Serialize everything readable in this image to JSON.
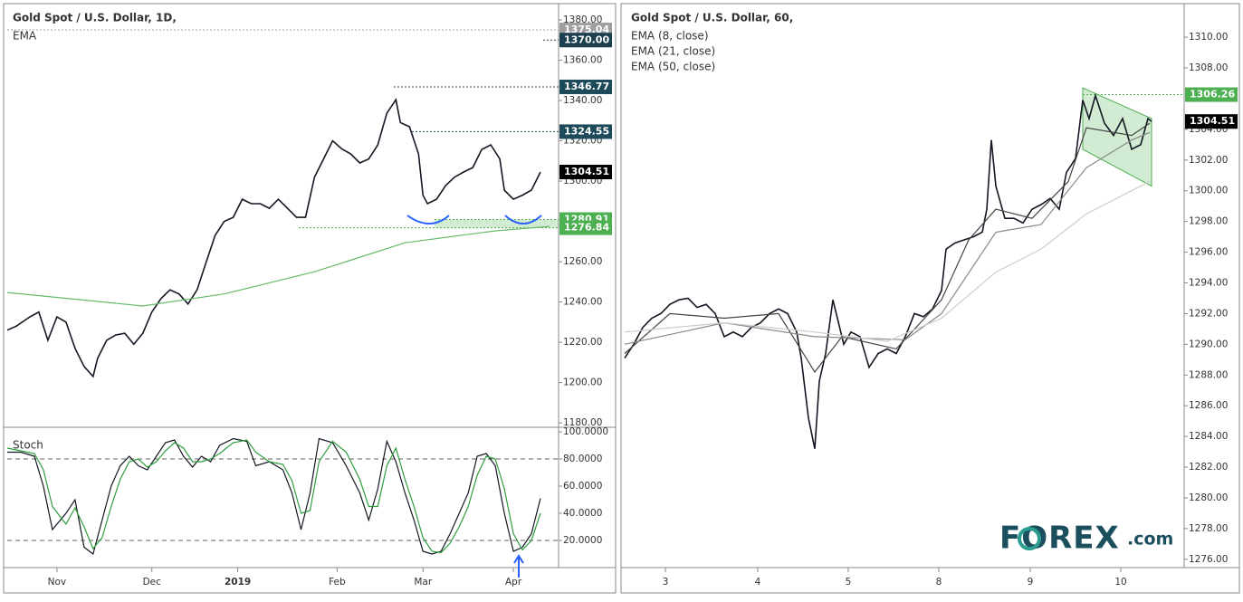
{
  "chart_data": [
    {
      "type": "line",
      "title": "Gold Spot / U.S. Dollar, 1D,",
      "xlim": [
        0,
        122
      ],
      "ylim": [
        1178.7,
        1386.3
      ],
      "yticks": [
        {
          "value": 1180,
          "label": "1180.00"
        },
        {
          "value": 1200,
          "label": "1200.00"
        },
        {
          "value": 1220,
          "label": "1220.00"
        },
        {
          "value": 1240,
          "label": "1240.00"
        },
        {
          "value": 1260,
          "label": "1260.00"
        },
        {
          "value": 1300,
          "label": "1300.00"
        },
        {
          "value": 1320,
          "label": "1320.00"
        },
        {
          "value": 1340,
          "label": "1340.00"
        },
        {
          "value": 1360,
          "label": "1360.00"
        },
        {
          "value": 1380,
          "label": "1380.00"
        }
      ],
      "series": [
        {
          "color": "#131722",
          "x": [
            0,
            2,
            5,
            7,
            9,
            11,
            13,
            15,
            17,
            19,
            20,
            22,
            24,
            26,
            28,
            30,
            32,
            34,
            36,
            38,
            40,
            42,
            44,
            46,
            48,
            50,
            52,
            54,
            56,
            58,
            60,
            62,
            64,
            66,
            68,
            70,
            72,
            74,
            76,
            78,
            80,
            82,
            84,
            86,
            87,
            89,
            91,
            92,
            93,
            95,
            97,
            99,
            101,
            103,
            105,
            107,
            109,
            110,
            112,
            114,
            116,
            118
          ],
          "values": [
            1226,
            1228,
            1232.6,
            1235,
            1221,
            1232.6,
            1230,
            1217,
            1208,
            1203,
            1212,
            1221,
            1223.6,
            1224.5,
            1219,
            1224.5,
            1235,
            1241.6,
            1246,
            1244,
            1239,
            1246,
            1259.6,
            1273,
            1280,
            1282,
            1291,
            1288.8,
            1288.8,
            1286.5,
            1291,
            1286.5,
            1282,
            1282,
            1302,
            1311,
            1320,
            1316,
            1313.5,
            1309,
            1311,
            1318,
            1333.7,
            1340.4,
            1329,
            1327,
            1313.5,
            1293,
            1288.8,
            1291,
            1297.8,
            1302,
            1304.5,
            1306.7,
            1315.7,
            1318,
            1311,
            1295.5,
            1291,
            1293,
            1295.5,
            1304.51
          ]
        },
        {
          "name": "EMA",
          "color": "#66bb6a",
          "x": [
            0,
            30,
            48,
            68,
            88,
            108,
            120
          ],
          "values": [
            1244.7,
            1238,
            1244,
            1255,
            1269.4,
            1275.3,
            1277.5
          ]
        }
      ],
      "price_labels": [
        {
          "value": 1375.04,
          "label": "1375.04",
          "color": "#9e9e9e"
        },
        {
          "value": 1370,
          "label": "1370.00",
          "color": "#1c3f4f"
        },
        {
          "value": 1346.77,
          "label": "1346.77",
          "color": "#1c4a5a"
        },
        {
          "value": 1324.55,
          "label": "1324.55",
          "color": "#1c4a5a"
        },
        {
          "value": 1304.51,
          "label": "1304.51",
          "color": "#000000"
        },
        {
          "value": 1280.91,
          "label": "1280.91",
          "color": "#4caf50"
        },
        {
          "value": 1276.84,
          "label": "1276.84",
          "color": "#4caf50"
        }
      ]
    },
    {
      "type": "line",
      "title": "Stoch",
      "xlim": [
        0,
        122
      ],
      "ylim": [
        0,
        102
      ],
      "yticks": [
        {
          "value": 20,
          "label": "20.0000"
        },
        {
          "value": 40,
          "label": "40.0000"
        },
        {
          "value": 60,
          "label": "60.0000"
        },
        {
          "value": 80,
          "label": "80.0000"
        },
        {
          "value": 100,
          "label": "100.0000"
        }
      ],
      "dashed_levels": [
        20,
        80
      ],
      "xticks": [
        {
          "value": 11,
          "label": "Nov"
        },
        {
          "value": 32,
          "label": "Dec"
        },
        {
          "value": 51,
          "label": "2019"
        },
        {
          "value": 73,
          "label": "Feb"
        },
        {
          "value": 92,
          "label": "Mar"
        },
        {
          "value": 112,
          "label": "Apr"
        }
      ],
      "series": [
        {
          "color": "#131722",
          "x": [
            0,
            3,
            6,
            8,
            10,
            13,
            15,
            17,
            19,
            21,
            23,
            25,
            27,
            29,
            31,
            33,
            35,
            37,
            39,
            41,
            43,
            45,
            47,
            50,
            53,
            55,
            58,
            61,
            63,
            65,
            67,
            69,
            72,
            75,
            78,
            80,
            82,
            84,
            86,
            88,
            90,
            92,
            94,
            96,
            98,
            100,
            102,
            104,
            106,
            108,
            110,
            112,
            114,
            116,
            118
          ],
          "values": [
            85,
            85,
            82,
            60,
            28,
            40,
            50,
            15,
            10,
            35,
            60,
            75,
            82,
            75,
            72,
            82,
            92,
            94,
            82,
            74,
            82,
            78,
            90,
            95,
            93,
            75,
            78,
            72,
            55,
            28,
            55,
            95,
            92,
            75,
            55,
            35,
            58,
            93,
            78,
            55,
            35,
            12,
            10,
            12,
            25,
            40,
            55,
            82,
            84,
            75,
            40,
            12,
            15,
            25,
            51
          ]
        },
        {
          "color": "#2e9e3f",
          "x": [
            0,
            3,
            6,
            8,
            10,
            13,
            15,
            17,
            19,
            21,
            23,
            25,
            27,
            29,
            31,
            33,
            35,
            37,
            39,
            41,
            43,
            45,
            47,
            50,
            53,
            55,
            58,
            61,
            63,
            65,
            67,
            69,
            72,
            75,
            78,
            80,
            82,
            84,
            86,
            88,
            90,
            92,
            94,
            96,
            98,
            100,
            102,
            104,
            106,
            108,
            110,
            112,
            114,
            116,
            118
          ],
          "values": [
            88,
            86,
            84,
            72,
            45,
            32,
            44,
            30,
            14,
            22,
            45,
            65,
            78,
            80,
            74,
            78,
            86,
            92,
            88,
            78,
            78,
            80,
            84,
            92,
            94,
            85,
            78,
            76,
            64,
            40,
            42,
            78,
            93,
            85,
            65,
            45,
            45,
            75,
            88,
            65,
            45,
            22,
            12,
            11,
            18,
            30,
            45,
            68,
            82,
            80,
            58,
            25,
            13,
            20,
            40
          ]
        }
      ]
    },
    {
      "type": "line",
      "title": "Gold Spot / U.S. Dollar, 60,",
      "xlim": [
        0,
        124
      ],
      "ylim": [
        1275.46,
        1311.95
      ],
      "yticks": [
        {
          "value": 1276,
          "label": "1276.00"
        },
        {
          "value": 1278,
          "label": "1278.00"
        },
        {
          "value": 1280,
          "label": "1280.00"
        },
        {
          "value": 1282,
          "label": "1282.00"
        },
        {
          "value": 1284,
          "label": "1284.00"
        },
        {
          "value": 1286,
          "label": "1286.00"
        },
        {
          "value": 1288,
          "label": "1288.00"
        },
        {
          "value": 1290,
          "label": "1290.00"
        },
        {
          "value": 1292,
          "label": "1292.00"
        },
        {
          "value": 1294,
          "label": "1294.00"
        },
        {
          "value": 1296,
          "label": "1296.00"
        },
        {
          "value": 1298,
          "label": "1298.00"
        },
        {
          "value": 1300,
          "label": "1300.00"
        },
        {
          "value": 1302,
          "label": "1302.00"
        },
        {
          "value": 1304,
          "label": "1304.00"
        },
        {
          "value": 1308,
          "label": "1308.00"
        },
        {
          "value": 1310,
          "label": "1310.00"
        }
      ],
      "xticks": [
        {
          "value": 9.4,
          "label": "3"
        },
        {
          "value": 29.8,
          "label": "4"
        },
        {
          "value": 49.8,
          "label": "5"
        },
        {
          "value": 69.8,
          "label": "8"
        },
        {
          "value": 90,
          "label": "9"
        },
        {
          "value": 110,
          "label": "10"
        }
      ],
      "series": [
        {
          "color": "#131722",
          "x": [
            0.4,
            2.4,
            4.4,
            6.4,
            8.4,
            10.4,
            12.4,
            14.4,
            16.4,
            18.4,
            20.4,
            22.4,
            24.4,
            26.4,
            28.4,
            30.4,
            32.4,
            34.4,
            36.4,
            38.4,
            39.4,
            41,
            42.4,
            43.4,
            44.8,
            46.4,
            47.4,
            48.8,
            50.4,
            52.4,
            54.4,
            56.4,
            58.4,
            60.4,
            62.4,
            64.4,
            66.4,
            68.4,
            70.4,
            71.4,
            73.4,
            75.4,
            77.4,
            79.4,
            80.4,
            81.4,
            82.4,
            84.4,
            86.4,
            88.4,
            90.4,
            92.4,
            94.4,
            96.4,
            98,
            100,
            101.6,
            103,
            104.4,
            106.4,
            108.4,
            110.4,
            112.4,
            114.4,
            116,
            116.8
          ],
          "values": [
            1289.1,
            1290,
            1291.1,
            1291.7,
            1292,
            1292.6,
            1292.9,
            1293,
            1292.4,
            1292.6,
            1292,
            1290.5,
            1290.8,
            1290.5,
            1291.1,
            1291.4,
            1292,
            1292.3,
            1292,
            1290.8,
            1289.1,
            1285.2,
            1283.2,
            1287.6,
            1289.4,
            1292.9,
            1291.7,
            1290,
            1290.8,
            1290.5,
            1288.5,
            1289.4,
            1289.7,
            1289.4,
            1290.5,
            1292,
            1291.8,
            1292.3,
            1293.5,
            1296.2,
            1296.6,
            1296.8,
            1297,
            1297.3,
            1298.8,
            1303.3,
            1300.3,
            1298.2,
            1298.2,
            1297.9,
            1298.8,
            1299.1,
            1299.5,
            1298.8,
            1301.2,
            1302.1,
            1305.9,
            1304.7,
            1306.2,
            1304.4,
            1303.6,
            1304.7,
            1302.7,
            1303,
            1304.7,
            1304.51
          ]
        },
        {
          "name": "EMA (8, close)",
          "color": "#444444",
          "x": [
            0.4,
            10.4,
            22.4,
            34.4,
            42.4,
            48.4,
            60.4,
            70.4,
            76.4,
            82.4,
            90.4,
            98.4,
            102.4,
            112.4,
            116.4
          ],
          "values": [
            1289.4,
            1292,
            1291.7,
            1292,
            1288.2,
            1290.5,
            1289.7,
            1292.9,
            1296.8,
            1298.8,
            1298.2,
            1300.6,
            1304.1,
            1303.6,
            1304.4
          ]
        },
        {
          "name": "EMA (21, close)",
          "color": "#888888",
          "x": [
            0.4,
            22.4,
            42.4,
            62.4,
            70.4,
            82.4,
            92.4,
            102.4,
            112.4,
            116.4
          ],
          "values": [
            1290,
            1291.4,
            1290.5,
            1290.3,
            1292,
            1297.3,
            1297.8,
            1301.5,
            1303.3,
            1303.8
          ]
        },
        {
          "name": "EMA (50, close)",
          "color": "#cccccc",
          "x": [
            0.4,
            22.4,
            42.4,
            58.4,
            70.4,
            82.4,
            92.4,
            102.4,
            112.4,
            116.4
          ],
          "values": [
            1290.8,
            1291.4,
            1290.8,
            1290.2,
            1291.7,
            1294.7,
            1296.2,
            1298.5,
            1300,
            1300.6
          ]
        }
      ],
      "channel": {
        "x": [
          101.6,
          116.8
        ],
        "upper": [
          1306.7,
          1304.7
        ],
        "lower": [
          1302.7,
          1300.3
        ],
        "color": "#4caf50"
      },
      "price_labels": [
        {
          "value": 1306.26,
          "label": "1306.26",
          "color": "#4caf50"
        },
        {
          "value": 1304.51,
          "label": "1304.51",
          "color": "#000000"
        }
      ]
    }
  ],
  "logo": {
    "name": "FOREX",
    "suffix": ".com"
  }
}
